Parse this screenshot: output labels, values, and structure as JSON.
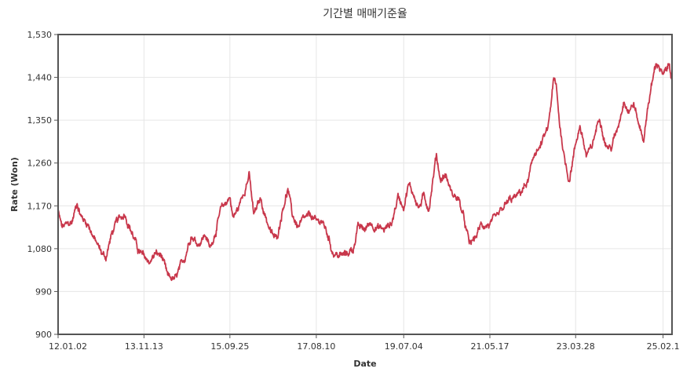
{
  "chart_data": {
    "type": "line",
    "title": "기간별 매매기준율",
    "xlabel": "Date",
    "ylabel": "Rate (Won)",
    "ylim": [
      900,
      1530
    ],
    "y_ticks": [
      "900",
      "990",
      "1,080",
      "1,170",
      "1,260",
      "1,350",
      "1,440",
      "1,530"
    ],
    "y_tick_values": [
      900,
      990,
      1080,
      1170,
      1260,
      1350,
      1440,
      1530
    ],
    "x_tick_labels": [
      "12.01.02",
      "13.11.13",
      "15.09.25",
      "17.08.10",
      "19.07.04",
      "21.05.17",
      "23.03.28",
      "25.02.1"
    ],
    "x_tick_dates": [
      "2012-01-02",
      "2013-11-13",
      "2015-09-25",
      "2017-08-10",
      "2019-07-04",
      "2021-05-17",
      "2023-03-28",
      "2025-02-18"
    ],
    "xlim": [
      "2012-01-02",
      "2025-04-30"
    ],
    "grid": true,
    "legend": "none",
    "series": [
      {
        "color": "#c8374b",
        "points": [
          [
            "2012-01-02",
            1158
          ],
          [
            "2012-02-01",
            1125
          ],
          [
            "2012-03-15",
            1130
          ],
          [
            "2012-04-20",
            1135
          ],
          [
            "2012-06-01",
            1178
          ],
          [
            "2012-07-01",
            1148
          ],
          [
            "2012-09-01",
            1130
          ],
          [
            "2012-10-15",
            1100
          ],
          [
            "2012-12-15",
            1070
          ],
          [
            "2013-01-15",
            1062
          ],
          [
            "2013-03-01",
            1110
          ],
          [
            "2013-04-10",
            1135
          ],
          [
            "2013-06-15",
            1155
          ],
          [
            "2013-07-10",
            1135
          ],
          [
            "2013-08-15",
            1110
          ],
          [
            "2013-10-01",
            1075
          ],
          [
            "2013-11-13",
            1062
          ],
          [
            "2014-01-01",
            1052
          ],
          [
            "2014-02-10",
            1070
          ],
          [
            "2014-04-01",
            1065
          ],
          [
            "2014-05-20",
            1020
          ],
          [
            "2014-07-20",
            1015
          ],
          [
            "2014-08-20",
            1035
          ],
          [
            "2014-10-01",
            1060
          ],
          [
            "2014-11-20",
            1110
          ],
          [
            "2015-01-15",
            1090
          ],
          [
            "2015-03-15",
            1110
          ],
          [
            "2015-04-20",
            1080
          ],
          [
            "2015-06-01",
            1115
          ],
          [
            "2015-07-15",
            1160
          ],
          [
            "2015-09-25",
            1190
          ],
          [
            "2015-10-20",
            1145
          ],
          [
            "2015-12-01",
            1165
          ],
          [
            "2016-02-25",
            1235
          ],
          [
            "2016-04-01",
            1150
          ],
          [
            "2016-05-25",
            1185
          ],
          [
            "2016-07-01",
            1150
          ],
          [
            "2016-08-20",
            1110
          ],
          [
            "2016-10-01",
            1100
          ],
          [
            "2016-11-20",
            1170
          ],
          [
            "2016-12-28",
            1205
          ],
          [
            "2017-02-01",
            1150
          ],
          [
            "2017-03-20",
            1125
          ],
          [
            "2017-05-01",
            1140
          ],
          [
            "2017-07-01",
            1150
          ],
          [
            "2017-08-10",
            1135
          ],
          [
            "2017-09-20",
            1140
          ],
          [
            "2017-11-01",
            1115
          ],
          [
            "2017-12-20",
            1072
          ],
          [
            "2018-02-01",
            1065
          ],
          [
            "2018-04-01",
            1068
          ],
          [
            "2018-06-01",
            1080
          ],
          [
            "2018-07-01",
            1125
          ],
          [
            "2018-09-01",
            1120
          ],
          [
            "2018-10-10",
            1135
          ],
          [
            "2018-12-01",
            1125
          ],
          [
            "2019-02-01",
            1120
          ],
          [
            "2019-04-01",
            1135
          ],
          [
            "2019-05-20",
            1190
          ],
          [
            "2019-07-04",
            1170
          ],
          [
            "2019-08-10",
            1215
          ],
          [
            "2019-09-20",
            1195
          ],
          [
            "2019-11-01",
            1165
          ],
          [
            "2019-12-10",
            1190
          ],
          [
            "2020-01-20",
            1165
          ],
          [
            "2020-03-19",
            1278
          ],
          [
            "2020-04-20",
            1225
          ],
          [
            "2020-06-01",
            1235
          ],
          [
            "2020-07-20",
            1195
          ],
          [
            "2020-09-10",
            1185
          ],
          [
            "2020-10-20",
            1145
          ],
          [
            "2020-12-05",
            1090
          ],
          [
            "2021-01-15",
            1100
          ],
          [
            "2021-03-10",
            1130
          ],
          [
            "2021-05-17",
            1130
          ],
          [
            "2021-07-15",
            1145
          ],
          [
            "2021-09-01",
            1165
          ],
          [
            "2021-10-15",
            1180
          ],
          [
            "2021-12-20",
            1190
          ],
          [
            "2022-02-01",
            1205
          ],
          [
            "2022-03-15",
            1220
          ],
          [
            "2022-05-10",
            1285
          ],
          [
            "2022-06-15",
            1290
          ],
          [
            "2022-07-15",
            1310
          ],
          [
            "2022-08-20",
            1330
          ],
          [
            "2022-10-05",
            1435
          ],
          [
            "2022-10-25",
            1420
          ],
          [
            "2022-11-20",
            1345
          ],
          [
            "2023-01-01",
            1265
          ],
          [
            "2023-02-05",
            1225
          ],
          [
            "2023-03-28",
            1300
          ],
          [
            "2023-05-01",
            1340
          ],
          [
            "2023-06-20",
            1275
          ],
          [
            "2023-08-01",
            1290
          ],
          [
            "2023-09-01",
            1325
          ],
          [
            "2023-10-05",
            1360
          ],
          [
            "2023-11-20",
            1300
          ],
          [
            "2024-01-01",
            1290
          ],
          [
            "2024-02-20",
            1330
          ],
          [
            "2024-04-16",
            1395
          ],
          [
            "2024-05-20",
            1370
          ],
          [
            "2024-07-01",
            1385
          ],
          [
            "2024-08-10",
            1340
          ],
          [
            "2024-09-20",
            1310
          ],
          [
            "2024-10-20",
            1380
          ],
          [
            "2024-12-20",
            1465
          ],
          [
            "2025-01-10",
            1470
          ],
          [
            "2025-02-18",
            1442
          ],
          [
            "2025-03-20",
            1455
          ],
          [
            "2025-04-10",
            1470
          ],
          [
            "2025-04-30",
            1440
          ]
        ]
      }
    ]
  }
}
